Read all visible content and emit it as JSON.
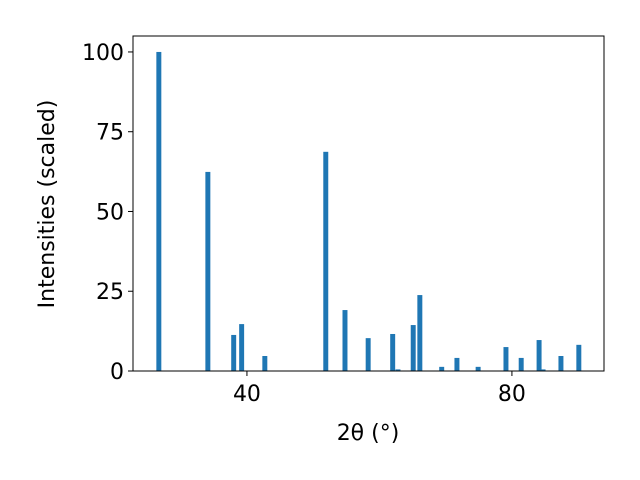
{
  "chart_data": {
    "type": "bar",
    "x_label": "2θ (°)",
    "y_label": "Intensities (scaled)",
    "x": [
      26.7,
      34.1,
      38.0,
      39.2,
      42.7,
      51.9,
      54.8,
      58.3,
      62.0,
      62.8,
      65.1,
      66.1,
      69.4,
      71.7,
      74.9,
      79.1,
      81.4,
      84.1,
      84.7,
      87.4,
      90.1
    ],
    "values": [
      100,
      62.4,
      11.3,
      14.7,
      4.7,
      68.7,
      19.1,
      10.3,
      11.6,
      0.5,
      14.4,
      23.8,
      1.3,
      4.1,
      1.3,
      7.5,
      4.1,
      9.7,
      0.5,
      4.7,
      8.2
    ],
    "color": "#1f77b4",
    "xlim": [
      22.8,
      93.9
    ],
    "xticks": [
      40,
      80
    ],
    "ylim": [
      0,
      105
    ],
    "yticks": [
      0,
      25,
      50,
      75,
      100
    ]
  }
}
